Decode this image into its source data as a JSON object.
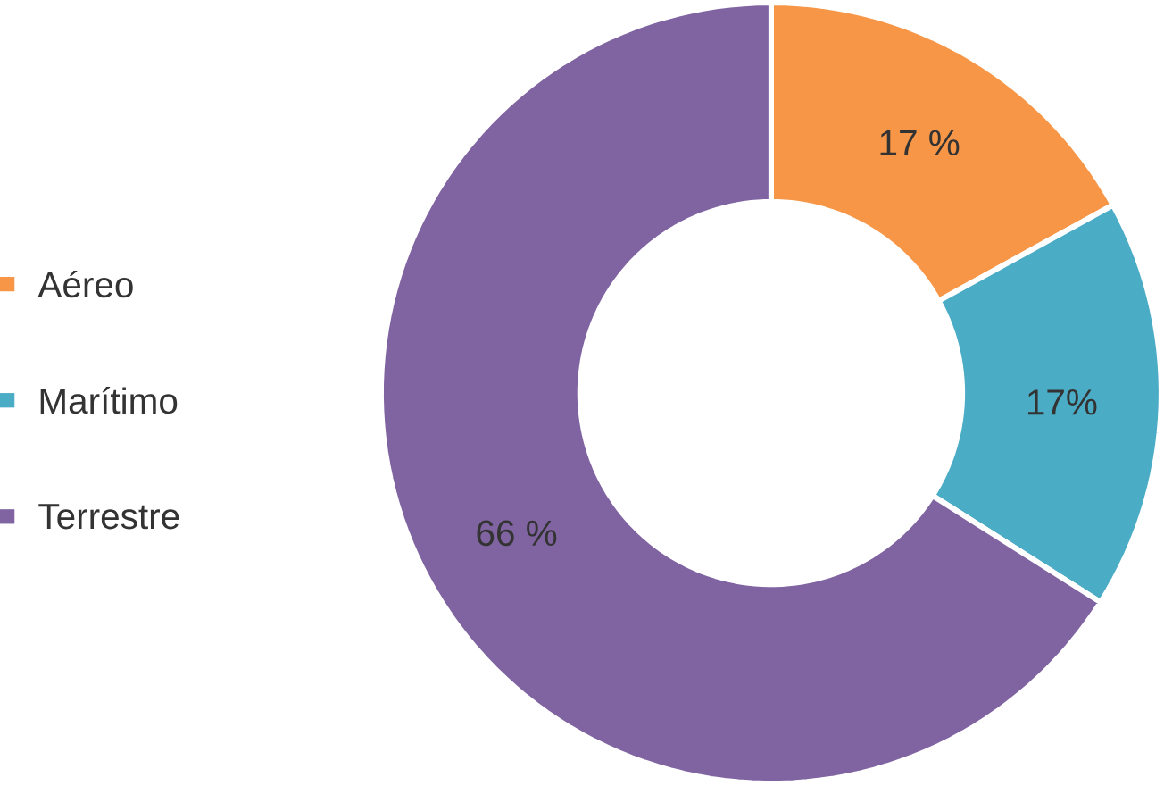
{
  "chart_data": {
    "type": "donut",
    "categories": [
      "Aéreo",
      "Marítimo",
      "Terrestre"
    ],
    "values": [
      17,
      17,
      66
    ],
    "colors": [
      "#f79646",
      "#4bacc6",
      "#8064a2"
    ],
    "value_labels": [
      "17 %",
      "17%",
      "66 %"
    ],
    "legend": "left"
  }
}
